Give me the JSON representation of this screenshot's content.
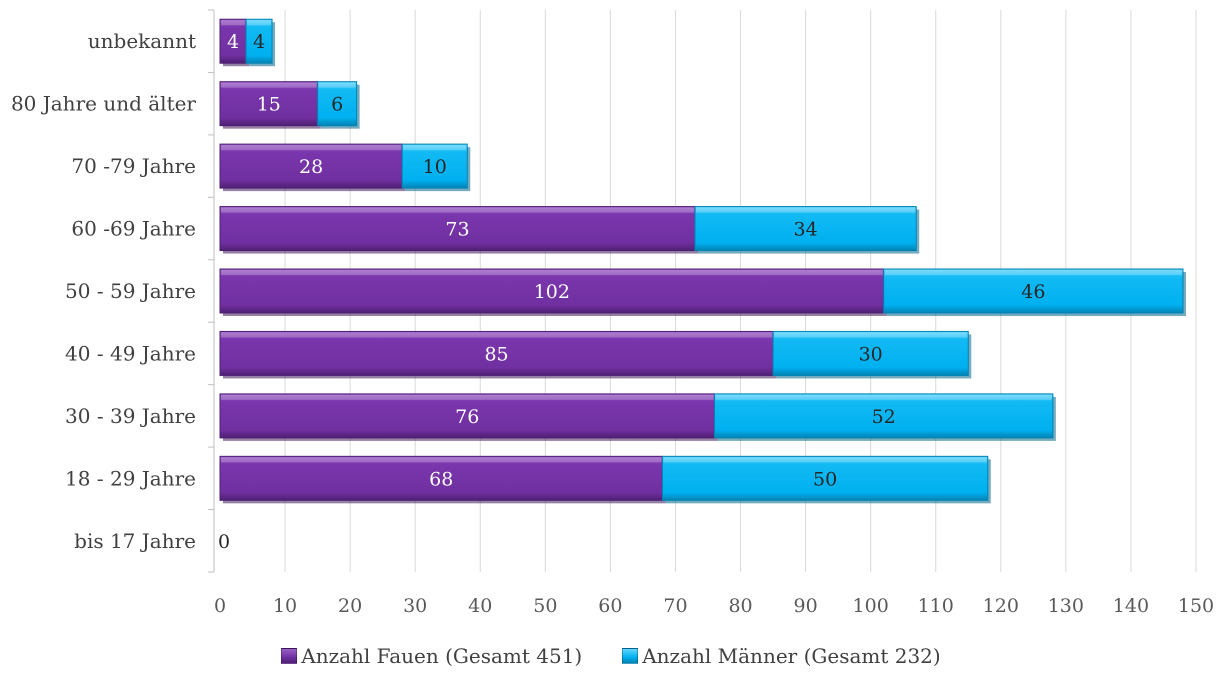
{
  "chart_data": {
    "type": "bar",
    "orientation": "horizontal",
    "stacked": true,
    "categories": [
      "bis 17 Jahre",
      "18 - 29 Jahre",
      "30 - 39 Jahre",
      "40 - 49 Jahre",
      "50 - 59 Jahre",
      "60 -69 Jahre",
      "70 -79 Jahre",
      "80 Jahre und älter",
      "unbekannt"
    ],
    "series": [
      {
        "name": "Anzahl Fauen (Gesamt 451)",
        "color": "#7030A0",
        "values": [
          0,
          68,
          76,
          85,
          102,
          73,
          28,
          15,
          4
        ]
      },
      {
        "name": "Anzahl Männer (Gesamt 232)",
        "color": "#00B0F0",
        "values": [
          0,
          50,
          52,
          30,
          46,
          34,
          10,
          6,
          4
        ]
      }
    ],
    "data_labels": [
      [
        "0",
        "68",
        "76",
        "85",
        "102",
        "73",
        "28",
        "15",
        "4"
      ],
      [
        "",
        "50",
        "52",
        "30",
        "46",
        "34",
        "10",
        "6",
        "4"
      ]
    ],
    "xticks": [
      "0",
      "10",
      "20",
      "30",
      "40",
      "50",
      "60",
      "70",
      "80",
      "90",
      "100",
      "110",
      "120",
      "130",
      "140",
      "150"
    ],
    "xlim": [
      0,
      150
    ],
    "grid": true,
    "legend_position": "bottom",
    "title": "",
    "xlabel": "",
    "ylabel": ""
  }
}
